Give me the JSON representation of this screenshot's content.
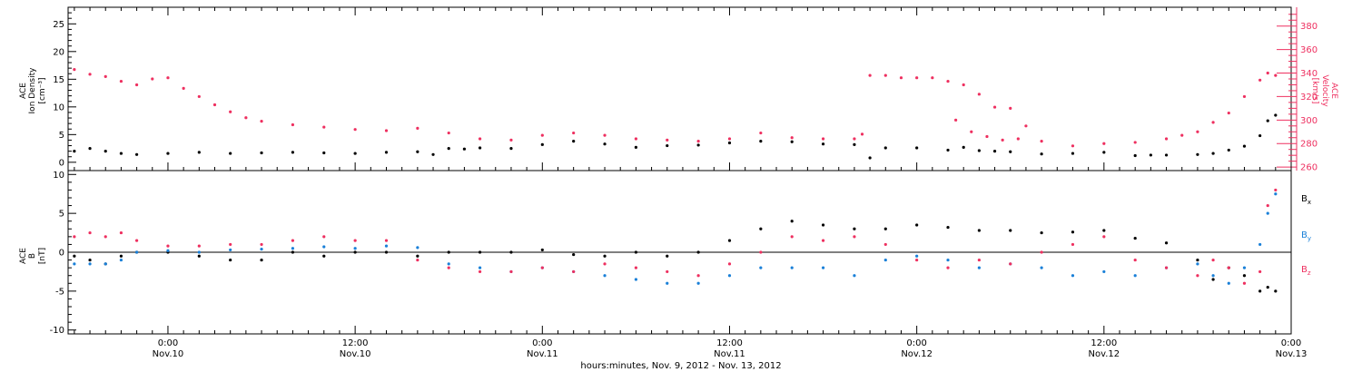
{
  "chart_data": [
    {
      "type": "scatter",
      "panel": "top",
      "ylabel_left": [
        "ACE",
        "Ion Density",
        "[cm⁻³]"
      ],
      "ylabel_right": [
        "ACE",
        "Velocity",
        "[km/s]"
      ],
      "ylim_left": [
        -1.5,
        28
      ],
      "ylim_right": [
        257,
        396
      ],
      "yticks_left": [
        0,
        5,
        10,
        15,
        20,
        25
      ],
      "yticks_right": [
        260,
        280,
        300,
        320,
        340,
        360,
        380
      ],
      "x_unit": "hours since 0:00 Nov. 9, 2012",
      "xlim": [
        17.6,
        96
      ],
      "colors": {
        "density": "#000000",
        "velocity": "#ee3060"
      },
      "series": [
        {
          "name": "Ion Density",
          "axis": "left",
          "color": "#000000",
          "x": [
            18,
            19,
            20,
            21,
            22,
            24,
            26,
            28,
            30,
            32,
            34,
            36,
            38,
            40,
            41,
            42,
            43,
            44,
            46,
            48,
            50,
            52,
            54,
            56,
            58,
            60,
            62,
            64,
            66,
            68,
            69,
            70,
            72,
            74,
            75,
            76,
            77,
            78,
            80,
            82,
            84,
            86,
            87,
            88,
            90,
            91,
            92,
            93,
            94,
            94.5,
            95
          ],
          "y": [
            2,
            2.5,
            2,
            1.6,
            1.4,
            1.6,
            1.8,
            1.6,
            1.7,
            1.8,
            1.7,
            1.6,
            1.8,
            1.9,
            1.4,
            2.5,
            2.4,
            2.6,
            2.5,
            3.2,
            3.8,
            3.3,
            2.7,
            3,
            3.1,
            3.5,
            3.8,
            3.7,
            3.3,
            3.2,
            0.8,
            2.6,
            2.6,
            2.2,
            2.7,
            2.1,
            2,
            1.9,
            1.5,
            1.6,
            1.8,
            1.2,
            1.3,
            1.3,
            1.4,
            1.6,
            2.2,
            2.9,
            4.8,
            7.5,
            8.5
          ]
        },
        {
          "name": "Velocity",
          "axis": "right",
          "color": "#ee3060",
          "x": [
            18,
            19,
            20,
            21,
            22,
            23,
            24,
            25,
            26,
            27,
            28,
            29,
            30,
            32,
            34,
            36,
            38,
            40,
            42,
            44,
            46,
            48,
            50,
            52,
            54,
            56,
            58,
            60,
            62,
            64,
            66,
            68,
            68.5,
            69,
            70,
            71,
            72,
            73,
            74,
            74.5,
            75,
            75.5,
            76,
            76.5,
            77,
            77.5,
            78,
            78.5,
            79,
            80,
            82,
            84,
            86,
            88,
            89,
            90,
            91,
            92,
            93,
            94,
            94.5,
            95
          ],
          "y": [
            343,
            339,
            337,
            333,
            330,
            335,
            336,
            327,
            320,
            313,
            307,
            302,
            299,
            296,
            294,
            292,
            291,
            293,
            289,
            284,
            283,
            287,
            289,
            287,
            284,
            283,
            282,
            284,
            289,
            285,
            284,
            284,
            288,
            338,
            338,
            336,
            336,
            336,
            333,
            300,
            330,
            290,
            322,
            286,
            311,
            283,
            310,
            284,
            295,
            282,
            278,
            280,
            281,
            284,
            287,
            290,
            298,
            306,
            320,
            334,
            340,
            338
          ]
        }
      ]
    },
    {
      "type": "scatter",
      "panel": "bottom",
      "ylabel_left": [
        "ACE",
        "B",
        "[nT]"
      ],
      "ylim": [
        -10.5,
        10.5
      ],
      "yticks": [
        -10,
        -5,
        0,
        5,
        10
      ],
      "xlim": [
        17.6,
        96
      ],
      "xticks": [
        "0:00",
        "12:00",
        "0:00",
        "12:00",
        "0:00",
        "12:00",
        "0:00"
      ],
      "xticks_sub": [
        "Nov.10",
        "Nov.10",
        "Nov.11",
        "Nov.11",
        "Nov.12",
        "Nov.12",
        "Nov.13"
      ],
      "xtick_hours": [
        24,
        36,
        48,
        60,
        72,
        84,
        96
      ],
      "xlabel": "hours:minutes, Nov.  9, 2012 - Nov. 13, 2012",
      "series": [
        {
          "name": "B",
          "sub": "x",
          "color": "#000000",
          "x": [
            18,
            19,
            20,
            21,
            22,
            24,
            26,
            28,
            30,
            32,
            34,
            36,
            38,
            40,
            42,
            44,
            46,
            48,
            50,
            52,
            54,
            56,
            58,
            60,
            62,
            64,
            66,
            68,
            70,
            72,
            74,
            76,
            78,
            80,
            82,
            84,
            86,
            88,
            90,
            91,
            92,
            93,
            94,
            94.5,
            95
          ],
          "y": [
            -0.5,
            -1,
            -1.5,
            -0.5,
            0,
            0,
            -0.5,
            -1,
            -1,
            0,
            -0.5,
            0,
            0,
            -0.5,
            0,
            0,
            0,
            0.3,
            -0.3,
            -0.5,
            0,
            -0.5,
            0,
            1.5,
            3,
            4,
            3.5,
            3,
            3,
            3.5,
            3.2,
            2.8,
            2.8,
            2.5,
            2.6,
            2.8,
            1.8,
            1.2,
            -1,
            -3.5,
            -2,
            -3,
            -5,
            -4.5,
            -5
          ]
        },
        {
          "name": "B",
          "sub": "y",
          "color": "#1a80d8",
          "x": [
            18,
            19,
            20,
            21,
            22,
            24,
            26,
            28,
            30,
            32,
            34,
            36,
            38,
            40,
            42,
            44,
            46,
            48,
            50,
            52,
            54,
            56,
            58,
            60,
            62,
            64,
            66,
            68,
            70,
            72,
            74,
            76,
            78,
            80,
            82,
            84,
            86,
            88,
            90,
            91,
            92,
            93,
            94,
            94.5,
            95
          ],
          "y": [
            -1.5,
            -1.5,
            -1.5,
            -1,
            0,
            0.2,
            0,
            0.3,
            0.4,
            0.5,
            0.7,
            0.5,
            0.8,
            0.6,
            -1.5,
            -2,
            -2.5,
            -2,
            -2.5,
            -3,
            -3.5,
            -4,
            -4,
            -3,
            -2,
            -2,
            -2,
            -3,
            -1,
            -0.5,
            -1,
            -2,
            -1.5,
            -2,
            -3,
            -2.5,
            -3,
            -2,
            -1.5,
            -3,
            -4,
            -2,
            1,
            5,
            7.5
          ]
        },
        {
          "name": "B",
          "sub": "z",
          "color": "#ee3060",
          "x": [
            18,
            19,
            20,
            21,
            22,
            24,
            26,
            28,
            30,
            32,
            34,
            36,
            38,
            40,
            42,
            44,
            46,
            48,
            50,
            52,
            54,
            56,
            58,
            60,
            62,
            64,
            66,
            68,
            70,
            72,
            74,
            76,
            78,
            80,
            82,
            84,
            86,
            88,
            90,
            91,
            92,
            93,
            94,
            94.5,
            95
          ],
          "y": [
            2,
            2.5,
            2,
            2.5,
            1.5,
            0.8,
            0.8,
            1,
            1,
            1.5,
            2,
            1.5,
            1.5,
            -1,
            -2,
            -2.5,
            -2.5,
            -2,
            -2.5,
            -1.5,
            -2,
            -2.5,
            -3,
            -1.5,
            0,
            2,
            1.5,
            2,
            1,
            -1,
            -2,
            -1,
            -1.5,
            0,
            1,
            2,
            -1,
            -2,
            -3,
            -1,
            -2,
            -4,
            -2.5,
            6,
            8
          ]
        }
      ]
    }
  ]
}
